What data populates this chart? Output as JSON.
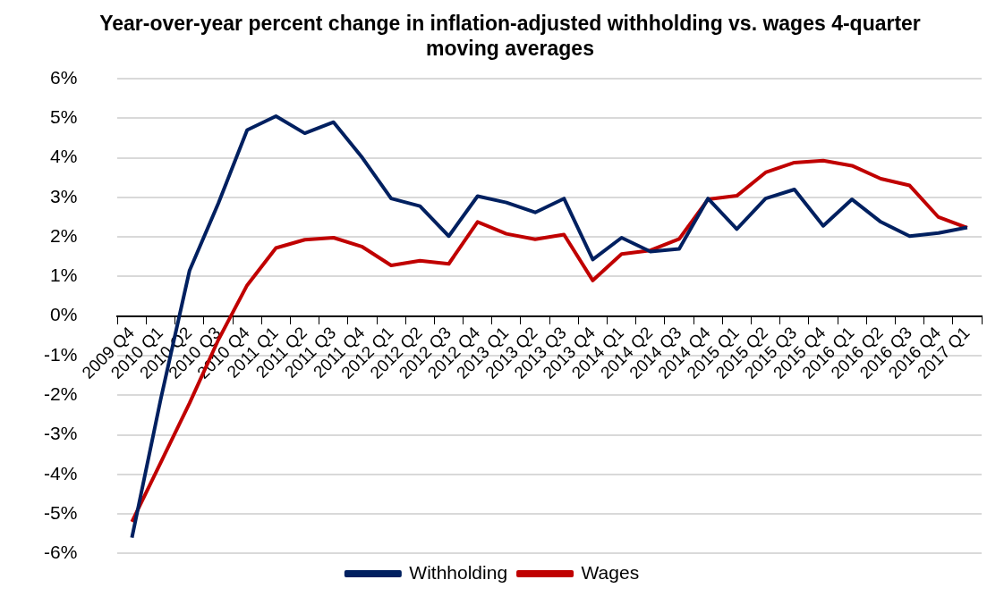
{
  "chart_data": {
    "type": "line",
    "title": "Year-over-year percent change in inflation-adjusted withholding vs. wages 4-quarter moving averages",
    "categories": [
      "2009 Q4",
      "2010 Q1",
      "2010 Q2",
      "2010 Q3",
      "2010 Q4",
      "2011 Q1",
      "2011 Q2",
      "2011 Q3",
      "2011 Q4",
      "2012 Q1",
      "2012 Q2",
      "2012 Q3",
      "2012 Q4",
      "2013 Q1",
      "2013 Q2",
      "2013 Q3",
      "2013 Q4",
      "2014 Q1",
      "2014 Q2",
      "2014 Q3",
      "2014 Q4",
      "2015 Q1",
      "2015 Q2",
      "2015 Q3",
      "2015 Q4",
      "2016 Q1",
      "2016 Q2",
      "2016 Q3",
      "2016 Q4",
      "2017 Q1"
    ],
    "series": [
      {
        "name": "Withholding",
        "color": "#002060",
        "values": [
          -5.6,
          -2.1,
          1.15,
          2.85,
          4.7,
          5.05,
          4.62,
          4.9,
          4.0,
          2.97,
          2.78,
          2.02,
          3.03,
          2.87,
          2.62,
          2.97,
          1.43,
          1.98,
          1.63,
          1.7,
          2.97,
          2.2,
          2.97,
          3.2,
          2.28,
          2.95,
          2.38,
          2.02,
          2.1,
          2.24
        ]
      },
      {
        "name": "Wages",
        "color": "#c00000",
        "values": [
          -5.2,
          -3.7,
          -2.2,
          -0.6,
          0.78,
          1.72,
          1.93,
          1.98,
          1.75,
          1.28,
          1.4,
          1.32,
          2.38,
          2.08,
          1.94,
          2.06,
          0.9,
          1.57,
          1.66,
          1.95,
          2.95,
          3.04,
          3.63,
          3.88,
          3.93,
          3.8,
          3.47,
          3.3,
          2.5,
          2.23
        ]
      }
    ],
    "ylim": [
      -6,
      6
    ],
    "yticks": [
      {
        "value": -6,
        "label": "-6%"
      },
      {
        "value": -5,
        "label": "-5%"
      },
      {
        "value": -4,
        "label": "-4%"
      },
      {
        "value": -3,
        "label": "-3%"
      },
      {
        "value": -2,
        "label": "-2%"
      },
      {
        "value": -1,
        "label": "-1%"
      },
      {
        "value": 0,
        "label": "0%"
      },
      {
        "value": 1,
        "label": "1%"
      },
      {
        "value": 2,
        "label": "2%"
      },
      {
        "value": 3,
        "label": "3%"
      },
      {
        "value": 4,
        "label": "4%"
      },
      {
        "value": 5,
        "label": "5%"
      },
      {
        "value": 6,
        "label": "6%"
      }
    ],
    "grid": "y",
    "legend": "bottom",
    "marker": "none",
    "line_style": "solid"
  }
}
